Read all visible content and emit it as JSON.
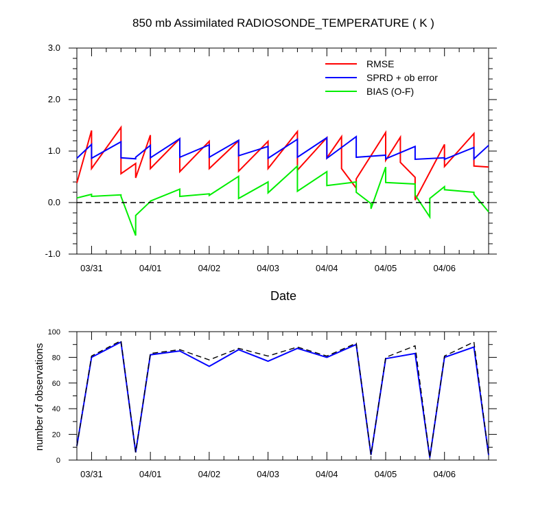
{
  "colors": {
    "rmse": "#ff0000",
    "sprd": "#0000ff",
    "bias": "#00ee00",
    "zero": "#000000",
    "obs_used": "#0000ff",
    "obs_possible": "#000000"
  },
  "chart_data": [
    {
      "type": "line",
      "title": "850 mb Assimilated RADIOSONDE_TEMPERATURE ( K )",
      "xlabel": "Date",
      "ylabel": "",
      "xlim": [
        0,
        7.0
      ],
      "ylim": [
        -1.0,
        3.0
      ],
      "yticks": [
        -1.0,
        0.0,
        1.0,
        2.0,
        3.0
      ],
      "ytick_labels": [
        "-1.0",
        "0.0",
        "1.0",
        "2.0",
        "3.0"
      ],
      "xticks": [
        0.25,
        1.25,
        2.25,
        3.25,
        4.25,
        5.25,
        6.25
      ],
      "xtick_labels": [
        "03/31",
        "04/01",
        "04/02",
        "04/03",
        "04/04",
        "04/05",
        "04/06"
      ],
      "legend": [
        "RMSE",
        "SPRD + ob error",
        "BIAS (O-F)"
      ],
      "legend_position": "top-right",
      "series": [
        {
          "name": "RMSE",
          "x": [
            0,
            0.25,
            0.25,
            0.75,
            0.75,
            1.0,
            1.0,
            1.25,
            1.25,
            1.75,
            1.75,
            2.25,
            2.25,
            2.75,
            2.75,
            3.25,
            3.25,
            3.75,
            3.75,
            4.25,
            4.25,
            4.5,
            4.5,
            4.75,
            4.75,
            5.25,
            5.25,
            5.5,
            5.5,
            5.75,
            5.75,
            6.25,
            6.25,
            6.75,
            6.75,
            7.0
          ],
          "y": [
            0.38,
            1.4,
            0.66,
            1.46,
            0.56,
            0.76,
            0.48,
            1.31,
            0.66,
            1.24,
            0.6,
            1.19,
            0.66,
            1.2,
            0.61,
            1.19,
            0.66,
            1.38,
            0.63,
            1.26,
            0.87,
            1.28,
            0.66,
            0.28,
            0.46,
            1.36,
            0.82,
            1.27,
            0.78,
            0.49,
            0.05,
            1.13,
            0.7,
            1.34,
            0.71,
            0.69
          ]
        },
        {
          "name": "SPRD + ob error",
          "x": [
            0,
            0.25,
            0.25,
            0.75,
            0.75,
            1.0,
            1.0,
            1.25,
            1.25,
            1.75,
            1.75,
            2.25,
            2.25,
            2.75,
            2.75,
            3.25,
            3.25,
            3.75,
            3.75,
            4.25,
            4.25,
            4.75,
            4.75,
            5.25,
            5.25,
            5.75,
            5.75,
            6.25,
            6.25,
            6.75,
            6.75,
            7.0
          ],
          "y": [
            0.86,
            1.13,
            0.86,
            1.18,
            0.87,
            0.85,
            0.88,
            1.11,
            0.87,
            1.24,
            0.88,
            1.12,
            0.88,
            1.21,
            0.91,
            1.09,
            0.86,
            1.23,
            0.88,
            1.26,
            0.86,
            1.28,
            0.88,
            0.92,
            0.85,
            1.09,
            0.84,
            0.87,
            0.84,
            1.07,
            0.85,
            1.11
          ]
        },
        {
          "name": "BIAS (O-F)",
          "x": [
            0,
            0.25,
            0.25,
            0.75,
            0.75,
            1.0,
            1.0,
            1.25,
            1.25,
            1.75,
            1.75,
            2.25,
            2.25,
            2.75,
            2.75,
            3.25,
            3.25,
            3.75,
            3.75,
            4.25,
            4.25,
            4.75,
            4.75,
            5.0,
            5.0,
            5.25,
            5.25,
            5.75,
            5.75,
            6.0,
            6.0,
            6.25,
            6.25,
            6.75,
            6.75,
            7.0
          ],
          "y": [
            0.09,
            0.16,
            0.12,
            0.15,
            0.12,
            -0.64,
            -0.25,
            0.02,
            0.03,
            0.26,
            0.12,
            0.17,
            0.14,
            0.51,
            0.08,
            0.4,
            0.19,
            0.71,
            0.22,
            0.6,
            0.33,
            0.4,
            0.2,
            -0.02,
            -0.12,
            0.69,
            0.39,
            0.36,
            0.15,
            -0.28,
            0.08,
            0.31,
            0.25,
            0.2,
            0.16,
            -0.18
          ]
        },
        {
          "name": "zero line",
          "style": "dashed",
          "x": [
            0,
            7.0
          ],
          "y": [
            0,
            0
          ]
        }
      ]
    },
    {
      "type": "line",
      "title": "",
      "xlabel": "",
      "ylabel": "number of observations",
      "xlim": [
        0,
        7.0
      ],
      "ylim": [
        0,
        100
      ],
      "yticks": [
        0,
        20,
        40,
        60,
        80,
        100
      ],
      "ytick_labels": [
        "0",
        "20",
        "40",
        "60",
        "80",
        "100"
      ],
      "xticks": [
        0.25,
        1.25,
        2.25,
        3.25,
        4.25,
        5.25,
        6.25
      ],
      "xtick_labels": [
        "03/31",
        "04/01",
        "04/02",
        "04/03",
        "04/04",
        "04/05",
        "04/06"
      ],
      "series": [
        {
          "name": "observations used",
          "x": [
            0,
            0.25,
            0.75,
            1.0,
            1.25,
            1.75,
            2.25,
            2.75,
            3.25,
            3.75,
            4.25,
            4.75,
            5.0,
            5.25,
            5.75,
            6.0,
            6.25,
            6.75,
            7.0
          ],
          "y": [
            11,
            80,
            92,
            6,
            82,
            85,
            73,
            86,
            77,
            87,
            80,
            90,
            4,
            79,
            83,
            2,
            80,
            88,
            4
          ]
        },
        {
          "name": "observations possible",
          "style": "dashed",
          "x": [
            0,
            0.25,
            0.75,
            1.0,
            1.25,
            1.75,
            2.25,
            2.75,
            3.25,
            3.75,
            4.25,
            4.75,
            5.0,
            5.25,
            5.75,
            6.0,
            6.25,
            6.75,
            7.0
          ],
          "y": [
            11,
            81,
            93,
            6,
            83,
            86,
            78,
            87,
            81,
            88,
            81,
            91,
            4,
            80,
            89,
            2,
            81,
            92,
            4
          ]
        }
      ]
    }
  ]
}
